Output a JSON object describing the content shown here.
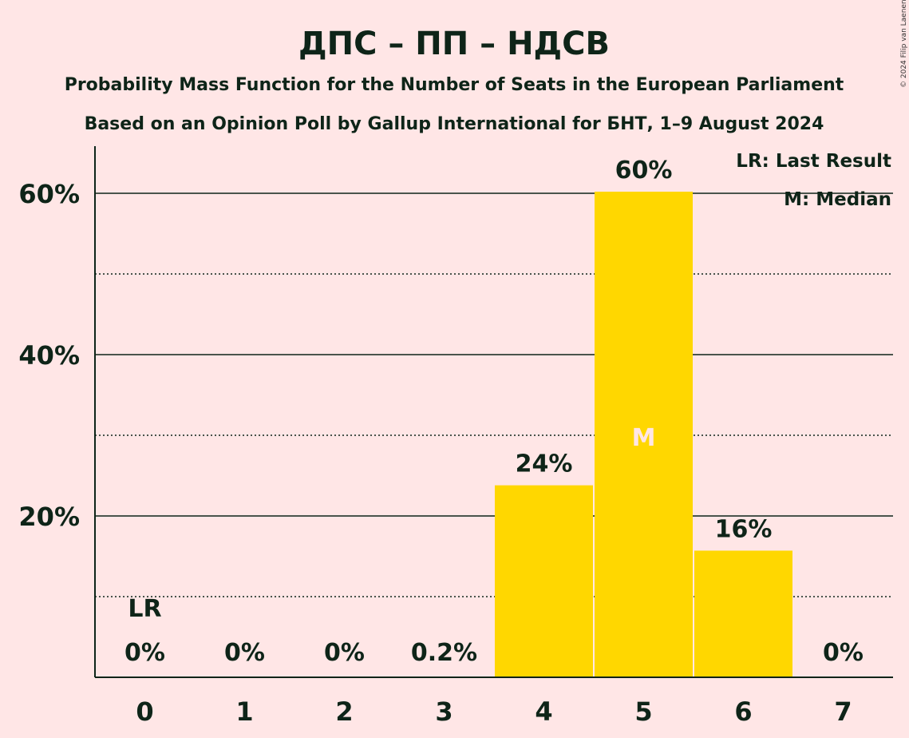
{
  "title": "ДПС – ПП – НДСВ",
  "subtitle1": "Probability Mass Function for the Number of Seats in the European Parliament",
  "subtitle2": "Based on an Opinion Poll by Gallup International for БНТ, 1–9 August 2024",
  "copyright": "© 2024 Filip van Laenen",
  "legend": {
    "lr": "LR: Last Result",
    "median": "M: Median"
  },
  "markers": {
    "lr": "LR",
    "median": "M"
  },
  "colors": {
    "background": "#FFE6E6",
    "bar": "#FFD700",
    "text": "#0E2418",
    "median_text": "#FFE6E6"
  },
  "chart_data": {
    "type": "bar",
    "categories": [
      "0",
      "1",
      "2",
      "3",
      "4",
      "5",
      "6",
      "7"
    ],
    "values": [
      0,
      0,
      0,
      0.2,
      24,
      60,
      16,
      0
    ],
    "bar_values_estimated": [
      0,
      0,
      0,
      0.2,
      23.8,
      60.2,
      15.7,
      0
    ],
    "data_labels": [
      "0%",
      "0%",
      "0%",
      "0.2%",
      "24%",
      "60%",
      "16%",
      "0%"
    ],
    "yticks": [
      20,
      40,
      60
    ],
    "ytick_labels": [
      "20%",
      "40%",
      "60%"
    ],
    "ylim": [
      0,
      65
    ],
    "minor_gridlines": [
      10,
      30,
      50
    ],
    "last_result_category": "0",
    "median_category": "5",
    "legend_placement": "top-right"
  }
}
